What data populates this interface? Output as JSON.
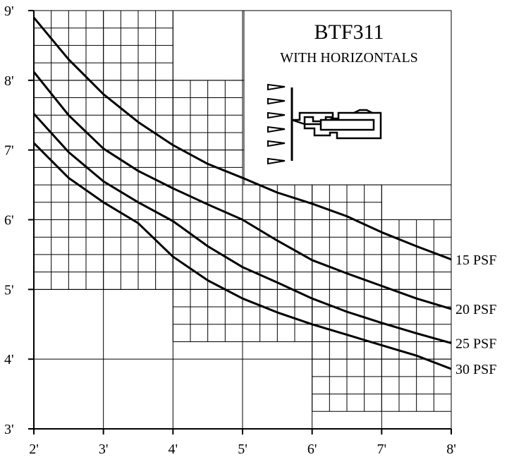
{
  "chart_data": {
    "type": "line",
    "title": "BTF311",
    "subtitle": "WITH HORIZONTALS",
    "xlabel": "",
    "ylabel": "",
    "xlim": [
      2,
      8
    ],
    "ylim": [
      3,
      9
    ],
    "x_ticks": [
      "2'",
      "3'",
      "4'",
      "5'",
      "6'",
      "7'",
      "8'"
    ],
    "y_ticks": [
      "3'",
      "4'",
      "5'",
      "6'",
      "7'",
      "8'",
      "9'"
    ],
    "grid": true,
    "series": [
      {
        "name": "15 PSF",
        "x": [
          2,
          2.5,
          3,
          3.5,
          4,
          4.5,
          5,
          5.5,
          6,
          6.5,
          7,
          7.5,
          8
        ],
        "y": [
          8.9,
          8.3,
          7.8,
          7.4,
          7.07,
          6.8,
          6.6,
          6.39,
          6.23,
          6.05,
          5.82,
          5.62,
          5.43
        ]
      },
      {
        "name": "20 PSF",
        "x": [
          2,
          2.5,
          3,
          3.5,
          4,
          4.5,
          5,
          5.5,
          6,
          6.5,
          7,
          7.5,
          8
        ],
        "y": [
          8.12,
          7.5,
          7.02,
          6.7,
          6.45,
          6.22,
          6.0,
          5.7,
          5.42,
          5.23,
          5.05,
          4.87,
          4.72
        ]
      },
      {
        "name": "25 PSF",
        "x": [
          2,
          2.5,
          3,
          3.5,
          4,
          4.5,
          5,
          5.5,
          6,
          6.5,
          7,
          7.5,
          8
        ],
        "y": [
          7.52,
          6.97,
          6.55,
          6.25,
          5.98,
          5.62,
          5.32,
          5.1,
          4.87,
          4.68,
          4.52,
          4.37,
          4.23
        ]
      },
      {
        "name": "30 PSF",
        "x": [
          2,
          2.5,
          3,
          3.5,
          4,
          4.5,
          5,
          5.5,
          6,
          6.5,
          7,
          7.5,
          8
        ],
        "y": [
          7.1,
          6.6,
          6.25,
          5.95,
          5.47,
          5.13,
          4.87,
          4.67,
          4.5,
          4.35,
          4.2,
          4.05,
          3.86
        ]
      }
    ]
  }
}
